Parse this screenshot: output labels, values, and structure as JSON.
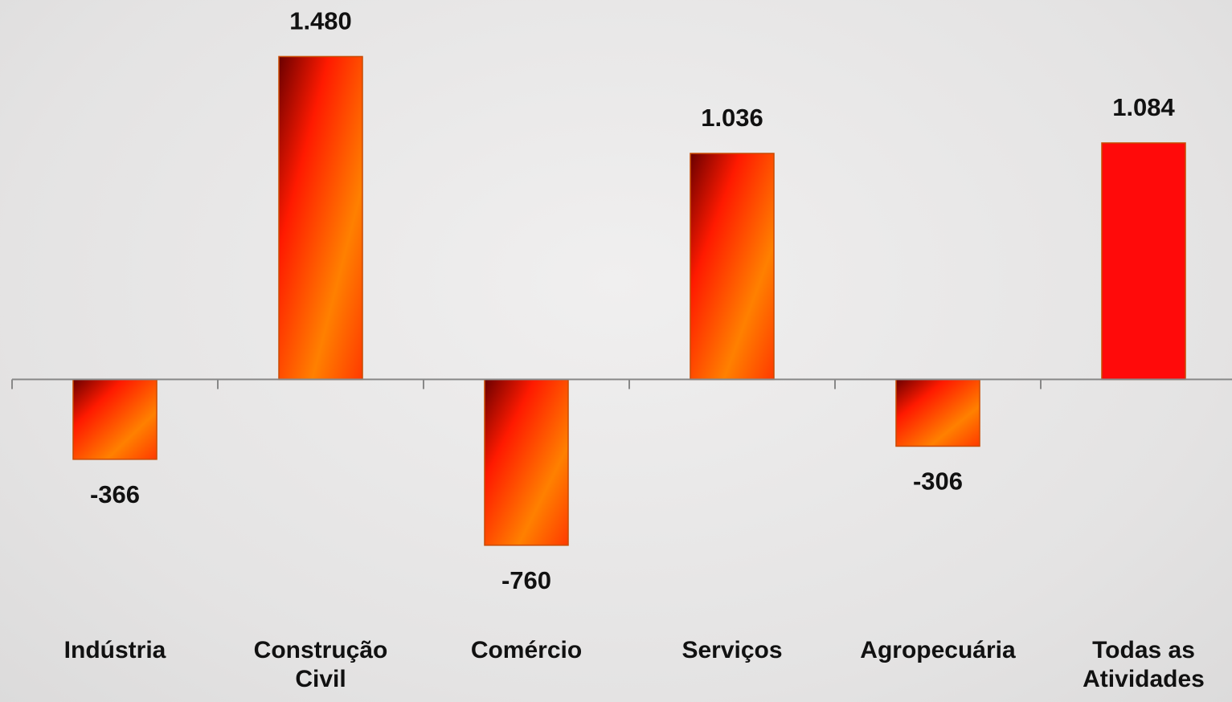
{
  "chart_data": {
    "type": "bar",
    "categories": [
      "Indústria",
      "Construção Civil",
      "Comércio",
      "Serviços",
      "Agropecuária",
      "Todas as Atividades"
    ],
    "values": [
      -366,
      1480,
      -760,
      1036,
      -306,
      1084
    ],
    "value_labels": [
      "-366",
      "1.480",
      "-760",
      "1.036",
      "-306",
      "1.084"
    ],
    "color": "#ff3300",
    "highlight": 5,
    "highlight_color": "#ff0a0a",
    "ylim": [
      -1000,
      1500
    ],
    "grid": false
  }
}
